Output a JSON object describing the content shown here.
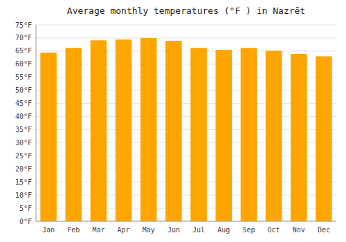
{
  "chart_data": {
    "type": "bar",
    "title": "Average monthly temperatures (°F ) in Nazrēt",
    "categories": [
      "Jan",
      "Feb",
      "Mar",
      "Apr",
      "May",
      "Jun",
      "Jul",
      "Aug",
      "Sep",
      "Oct",
      "Nov",
      "Dec"
    ],
    "values": [
      64.4,
      66.2,
      69.1,
      69.4,
      70.0,
      68.9,
      66.2,
      65.5,
      66.2,
      65.1,
      63.9,
      63.0
    ],
    "color": "#FFA500",
    "ylim": [
      0,
      75
    ],
    "yticks": [
      {
        "value": 0,
        "label": "0°F"
      },
      {
        "value": 5,
        "label": "5°F"
      },
      {
        "value": 10,
        "label": "10°F"
      },
      {
        "value": 15,
        "label": "15°F"
      },
      {
        "value": 20,
        "label": "20°F"
      },
      {
        "value": 25,
        "label": "25°F"
      },
      {
        "value": 30,
        "label": "30°F"
      },
      {
        "value": 35,
        "label": "35°F"
      },
      {
        "value": 40,
        "label": "40°F"
      },
      {
        "value": 45,
        "label": "45°F"
      },
      {
        "value": 50,
        "label": "50°F"
      },
      {
        "value": 55,
        "label": "55°F"
      },
      {
        "value": 60,
        "label": "60°F"
      },
      {
        "value": 65,
        "label": "65°F"
      },
      {
        "value": 70,
        "label": "70°F"
      },
      {
        "value": 75,
        "label": "75°F"
      }
    ],
    "grid": true
  }
}
